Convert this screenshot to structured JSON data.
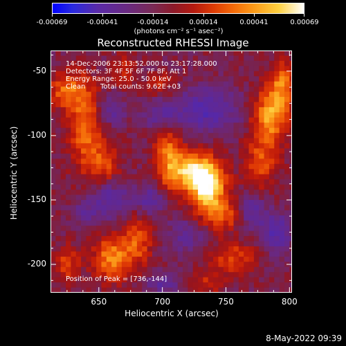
{
  "colorbar": {
    "ticks": [
      "-0.00069",
      "-0.00041",
      "-0.00014",
      "0.00014",
      "0.00041",
      "0.00069"
    ],
    "unit": "(photons cm⁻² s⁻¹ asec⁻²)",
    "range": [
      -0.00069,
      0.00069
    ]
  },
  "chart_data": {
    "type": "heatmap",
    "title": "Reconstructed RHESSI Image",
    "xlabel": "Heliocentric X (arcsec)",
    "ylabel": "Heliocentric Y (arcsec)",
    "xlim": [
      612,
      802
    ],
    "ylim": [
      -222,
      -34
    ],
    "xticks": [
      "650",
      "700",
      "750",
      "800"
    ],
    "yticks": [
      "-50",
      "-100",
      "-150",
      "-200"
    ],
    "annotations": {
      "line1": "14-Dec-2006 23:13:52.000 to 23:17:28.000",
      "line2": "Detectors: 3F 4F 5F 6F 7F 8F, Att 1",
      "line3": "Energy Range: 25.0 - 50.0 keV",
      "line4_label": "Clean",
      "line4_counts": "Total counts: 9.62E+03",
      "peak": "Position of Peak = [736,-144]"
    },
    "peak": [
      736,
      -144
    ],
    "blobs": [
      {
        "x": 736,
        "y": -140,
        "amp": 0.00069,
        "sx": 10,
        "sy": 14
      },
      {
        "x": 722,
        "y": -128,
        "amp": 0.0005,
        "sx": 12,
        "sy": 10
      },
      {
        "x": 705,
        "y": -115,
        "amp": 0.00038,
        "sx": 8,
        "sy": 18
      },
      {
        "x": 750,
        "y": -162,
        "amp": 0.0003,
        "sx": 12,
        "sy": 8
      },
      {
        "x": 785,
        "y": -85,
        "amp": 0.0005,
        "sx": 10,
        "sy": 14
      },
      {
        "x": 795,
        "y": -60,
        "amp": 0.0004,
        "sx": 8,
        "sy": 12
      },
      {
        "x": 778,
        "y": -120,
        "amp": 0.00032,
        "sx": 9,
        "sy": 14
      },
      {
        "x": 640,
        "y": -95,
        "amp": 0.0004,
        "sx": 9,
        "sy": 24
      },
      {
        "x": 625,
        "y": -65,
        "amp": 0.00038,
        "sx": 10,
        "sy": 10
      },
      {
        "x": 655,
        "y": -122,
        "amp": 0.0003,
        "sx": 8,
        "sy": 10
      },
      {
        "x": 660,
        "y": -195,
        "amp": 0.00045,
        "sx": 10,
        "sy": 12
      },
      {
        "x": 680,
        "y": -182,
        "amp": 0.00033,
        "sx": 8,
        "sy": 14
      },
      {
        "x": 625,
        "y": -200,
        "amp": 0.00028,
        "sx": 7,
        "sy": 10
      },
      {
        "x": 755,
        "y": -195,
        "amp": 0.0003,
        "sx": 12,
        "sy": 9
      },
      {
        "x": 735,
        "y": -215,
        "amp": 0.0002,
        "sx": 10,
        "sy": 6
      },
      {
        "x": 700,
        "y": -60,
        "amp": 0.0002,
        "sx": 8,
        "sy": 6
      },
      {
        "x": 670,
        "y": -50,
        "amp": 0.00025,
        "sx": 6,
        "sy": 8
      },
      {
        "x": 660,
        "y": -150,
        "amp": -0.0003,
        "sx": 10,
        "sy": 10
      },
      {
        "x": 690,
        "y": -150,
        "amp": -0.0003,
        "sx": 8,
        "sy": 8
      },
      {
        "x": 735,
        "y": -80,
        "amp": -0.00035,
        "sx": 18,
        "sy": 12
      },
      {
        "x": 700,
        "y": -85,
        "amp": -0.00025,
        "sx": 10,
        "sy": 8
      },
      {
        "x": 660,
        "y": -80,
        "amp": -0.00025,
        "sx": 8,
        "sy": 8
      },
      {
        "x": 770,
        "y": -160,
        "amp": -0.0003,
        "sx": 8,
        "sy": 10
      },
      {
        "x": 790,
        "y": -175,
        "amp": -0.00035,
        "sx": 8,
        "sy": 10
      },
      {
        "x": 700,
        "y": -215,
        "amp": -0.00025,
        "sx": 10,
        "sy": 6
      },
      {
        "x": 718,
        "y": -178,
        "amp": -0.00022,
        "sx": 10,
        "sy": 10
      },
      {
        "x": 640,
        "y": -160,
        "amp": -0.0002,
        "sx": 8,
        "sy": 8
      }
    ]
  },
  "footer": {
    "timestamp": "8-May-2022 09:39"
  }
}
